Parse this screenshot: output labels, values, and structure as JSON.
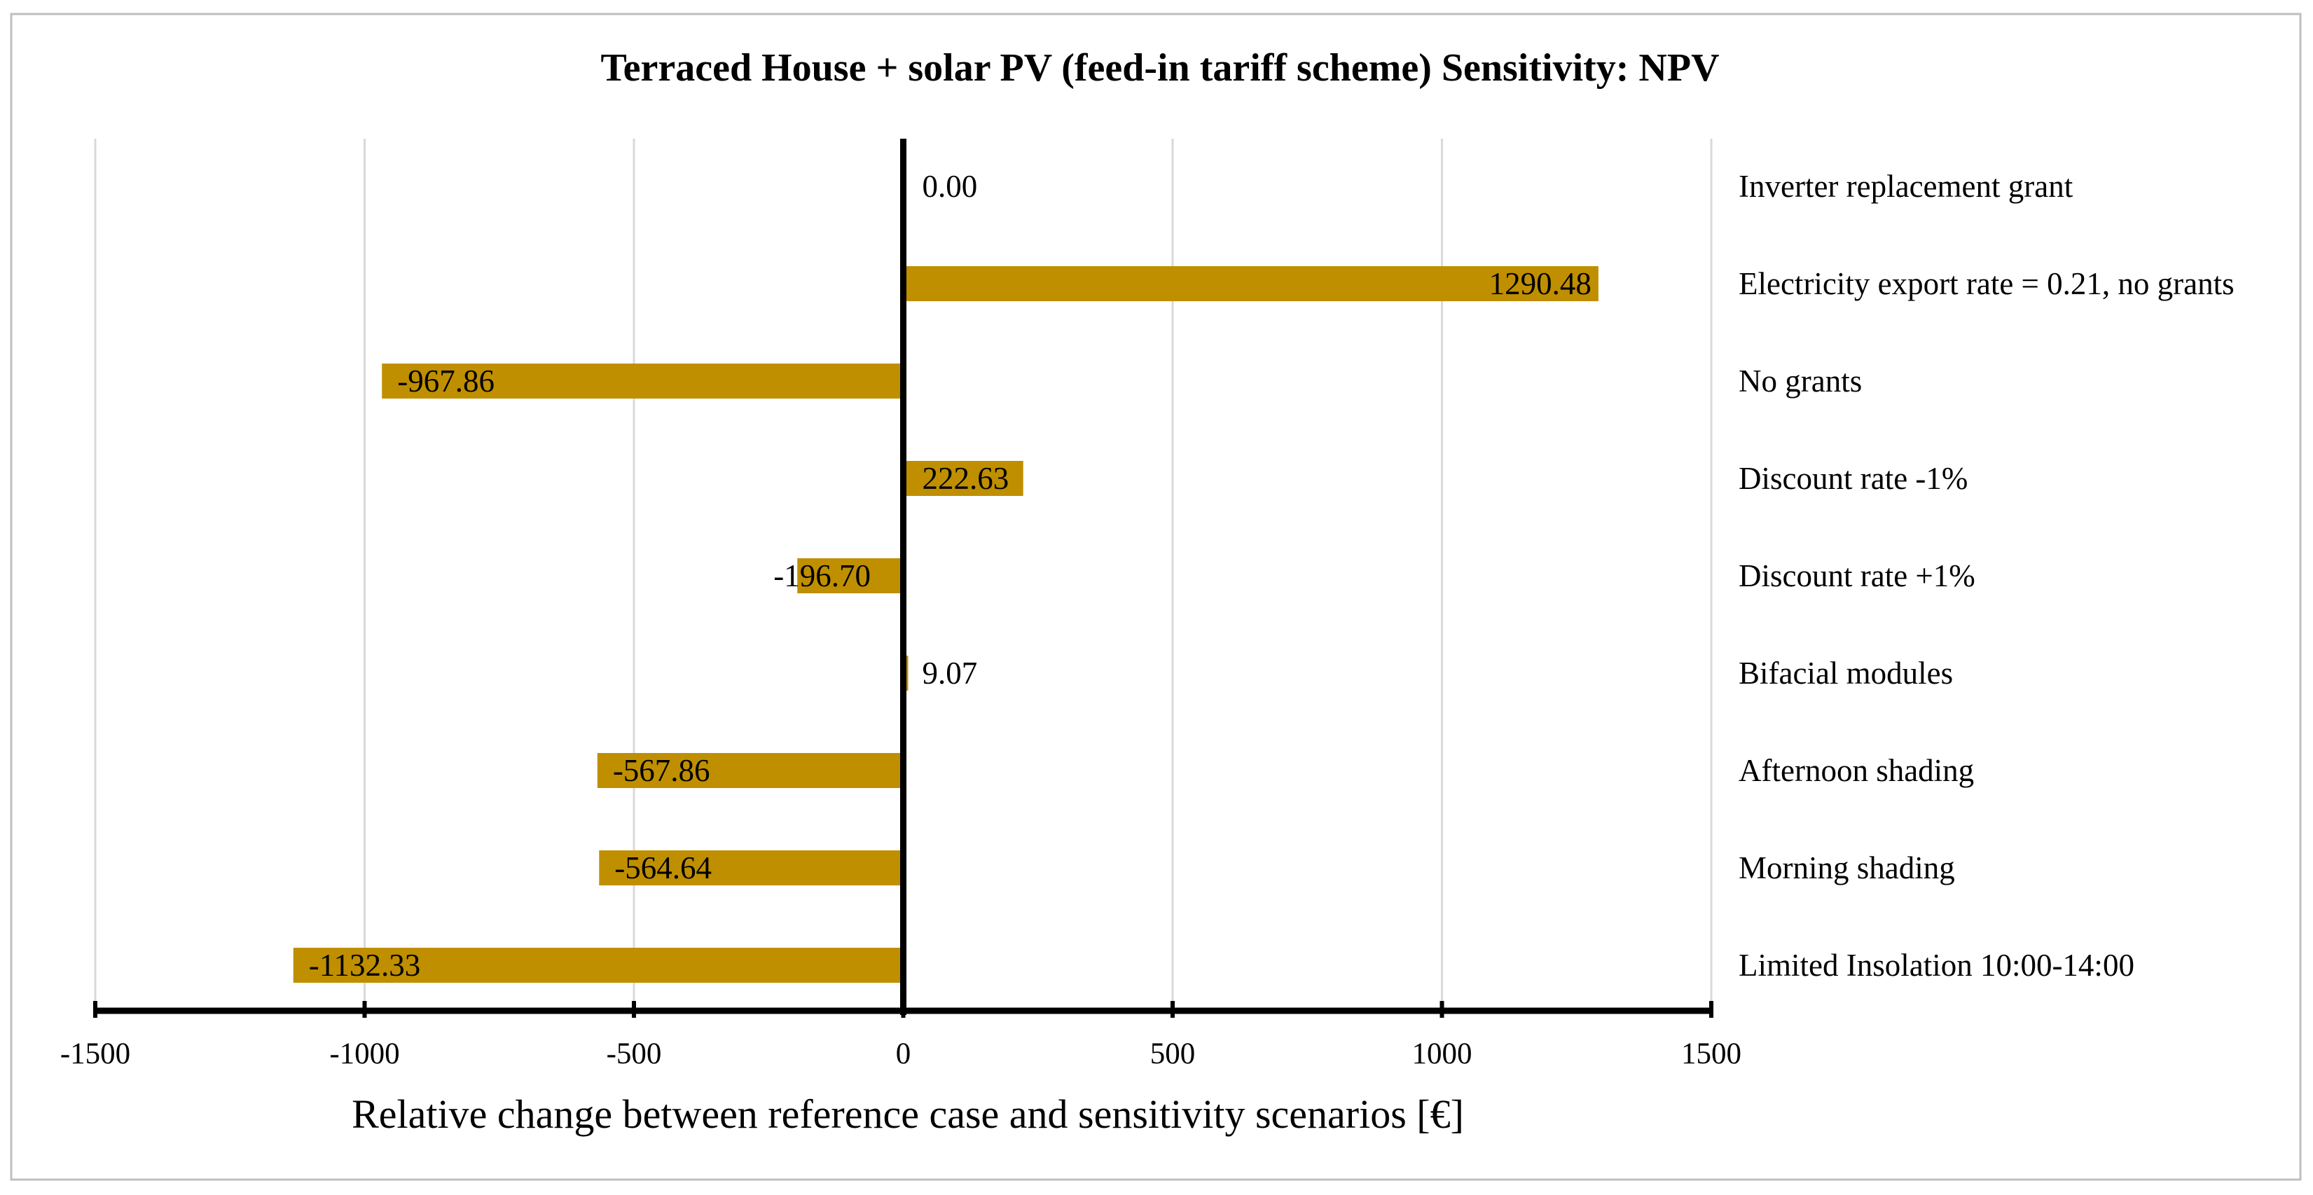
{
  "chart_data": {
    "type": "bar",
    "orientation": "horizontal",
    "title": "Terraced  House + solar PV (feed-in tariff scheme) Sensitivity: NPV",
    "xlabel": "Relative change between reference case and sensitivity scenarios [€]",
    "ylabel": "",
    "xlim": [
      -1500,
      1500
    ],
    "x_ticks": [
      -1500,
      -1000,
      -500,
      0,
      500,
      1000,
      1500
    ],
    "x_tick_labels": [
      "-1500",
      "-1000",
      "-500",
      "0",
      "500",
      "1000",
      "1500"
    ],
    "grid": "vertical",
    "legend": "none",
    "categories": [
      "Inverter replacement grant",
      "Electricity export rate = 0.21, no grants",
      "No grants",
      "Discount rate -1%",
      "Discount rate +1%",
      "Bifacial modules",
      "Afternoon shading",
      "Morning shading",
      "Limited Insolation 10:00-14:00"
    ],
    "values": [
      0.0,
      1290.48,
      -967.86,
      222.63,
      -196.7,
      9.07,
      -567.86,
      -564.64,
      -1132.33
    ],
    "value_labels": [
      "0.00",
      "1290.48",
      "-967.86",
      "222.63",
      "-196.70",
      "9.07",
      "-567.86",
      "-564.64",
      "-1132.33"
    ],
    "colors": {
      "bar": "#bf8f00",
      "grid": "#d9d9d9",
      "axis": "#000000",
      "frame": "#bfbfbf"
    }
  }
}
